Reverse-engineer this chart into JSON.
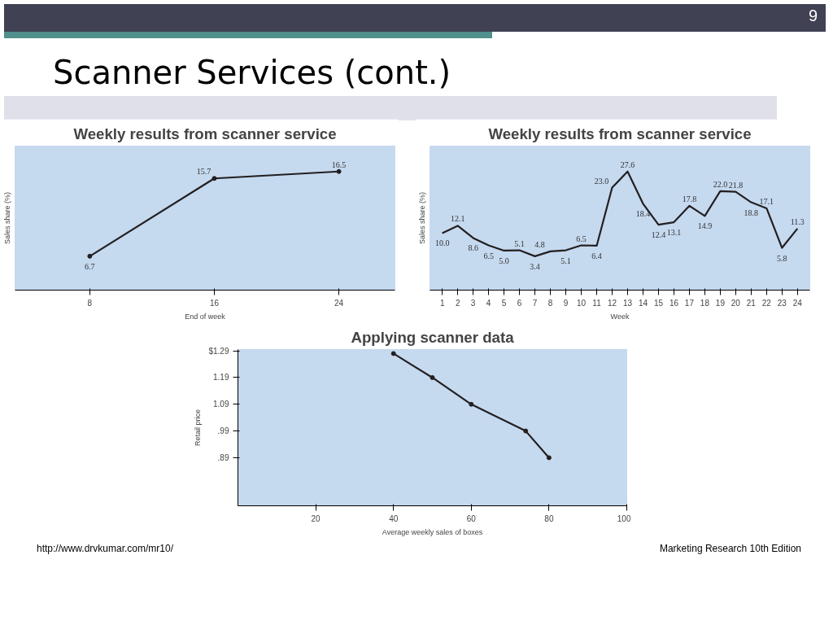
{
  "chart_data": [
    {
      "type": "line",
      "title": "Weekly results from scanner service",
      "xlabel": "End of week",
      "ylabel": "Sales share (%)",
      "x": [
        8,
        16,
        24
      ],
      "values": [
        6.7,
        15.7,
        16.5
      ],
      "color": "#231f20",
      "xlim": [
        3.2,
        27.6
      ],
      "xticks": [
        8,
        16,
        24
      ],
      "data_labels": true,
      "marker": "circle",
      "grid": false,
      "annotations": [
        "9",
        "Scanner Services (cont.)"
      ]
    },
    {
      "type": "line",
      "title": "Weekly results from scanner service",
      "xlabel": "Week",
      "ylabel": "Sales share (%)",
      "x": [
        1,
        2,
        3,
        4,
        5,
        6,
        7,
        8,
        9,
        10,
        11,
        12,
        13,
        14,
        15,
        16,
        17,
        18,
        19,
        20,
        21,
        22,
        23,
        24
      ],
      "values": [
        10.0,
        12.1,
        8.6,
        6.5,
        5.0,
        5.1,
        3.4,
        4.8,
        5.1,
        6.5,
        6.4,
        23.0,
        27.6,
        18.4,
        12.4,
        13.1,
        17.8,
        14.9,
        22.0,
        21.8,
        18.8,
        17.1,
        5.8,
        11.3
      ],
      "color": "#231f20",
      "xlim": [
        0.2,
        24.8
      ],
      "xticks": [
        1,
        2,
        3,
        4,
        5,
        6,
        7,
        8,
        9,
        10,
        11,
        12,
        13,
        14,
        15,
        16,
        17,
        18,
        19,
        20,
        21,
        22,
        23,
        24
      ],
      "value_labels": [
        "10.0",
        "12.1",
        "8.6",
        "6.5",
        "5.0",
        "5.1",
        "3.4",
        "4.8",
        "5.1",
        "6.5",
        "6.4",
        "23.0",
        "27.6",
        "18.4",
        "12.4",
        "13.1",
        "17.8",
        "14.9",
        "22.0",
        "21.8",
        "18.8",
        "17.1",
        "5.8",
        "11.3"
      ],
      "grid": false
    },
    {
      "type": "line",
      "title": "Applying scanner data",
      "xlabel": "Average weekly sales of boxes",
      "ylabel": "Retail price",
      "x": [
        40,
        50,
        60,
        74,
        80
      ],
      "values": [
        1.28,
        1.19,
        1.09,
        0.99,
        0.89
      ],
      "color": "#231f20",
      "xlim": [
        0,
        100
      ],
      "ylim": [
        0.71,
        1.295
      ],
      "xticks": [
        20,
        40,
        60,
        80,
        100
      ],
      "yticks": [
        {
          "value": 0.89,
          "label": ".89"
        },
        {
          "value": 0.99,
          "label": ".99"
        },
        {
          "value": 1.09,
          "label": "1.09"
        },
        {
          "value": 1.19,
          "label": "1.19"
        },
        {
          "value": 1.29,
          "label": "$1.29"
        }
      ],
      "marker": "circle",
      "grid": false,
      "annotations": [
        "http://www.drvkumar.com/mr10/",
        "Marketing Research 10th Edition"
      ]
    }
  ]
}
